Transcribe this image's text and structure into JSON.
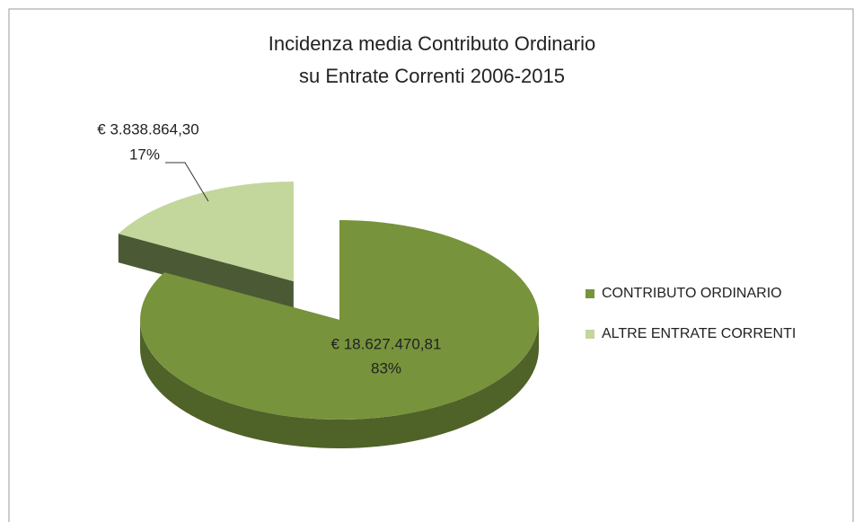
{
  "chart_data": {
    "type": "pie3d",
    "title": [
      "Incidenza media Contributo Ordinario",
      "su Entrate Correnti 2006-2015"
    ],
    "categories": [
      "CONTRIBUTO ORDINARIO",
      "ALTRE ENTRATE CORRENTI"
    ],
    "values": [
      18627470.81,
      3838864.3
    ],
    "value_labels": [
      "€ 18.627.470,81",
      "€ 3.838.864,30"
    ],
    "percents": [
      83,
      17
    ],
    "percent_labels": [
      "83%",
      "17%"
    ],
    "colors": [
      "#77933c",
      "#c3d69b"
    ],
    "side_colors": [
      "#4f6228",
      "#4b5a35"
    ],
    "explode": [
      0,
      0.45
    ],
    "legend": "right"
  }
}
